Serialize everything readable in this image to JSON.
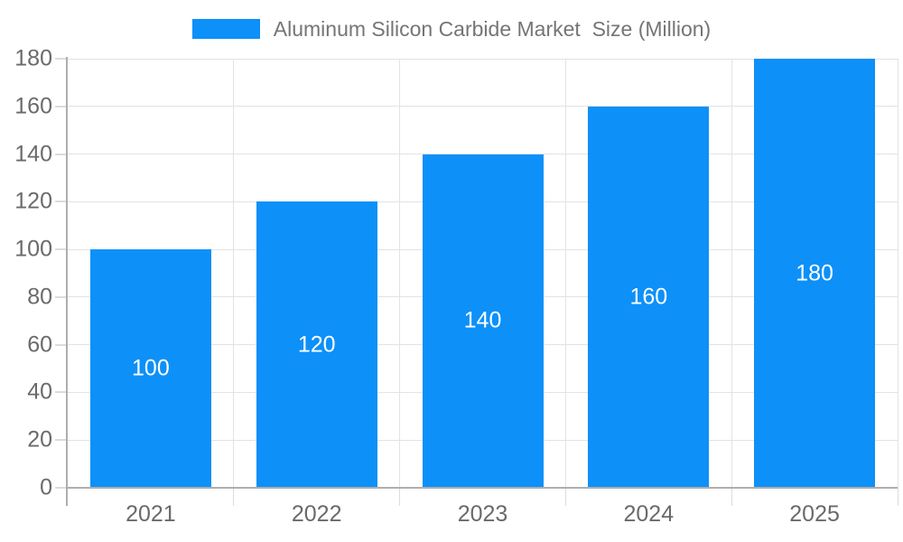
{
  "legend": {
    "label": "Aluminum Silicon Carbide Market  Size (Million)"
  },
  "chart_data": {
    "type": "bar",
    "title": "",
    "xlabel": "",
    "ylabel": "",
    "categories": [
      "2021",
      "2022",
      "2023",
      "2024",
      "2025"
    ],
    "series": [
      {
        "name": "Aluminum Silicon Carbide Market  Size (Million)",
        "values": [
          100,
          120,
          140,
          160,
          180
        ]
      }
    ],
    "bar_value_labels": [
      "100",
      "120",
      "140",
      "160",
      "180"
    ],
    "ylim": [
      0,
      180
    ],
    "ytick_step": 20,
    "yticks": [
      0,
      20,
      40,
      60,
      80,
      100,
      120,
      140,
      160,
      180
    ],
    "grid": true,
    "legend_position": "top-center"
  },
  "colors": {
    "bar": "#0d90f8",
    "grid_line": "#e3e3e3",
    "axis_line": "#aeaeae",
    "tick_mark": "#dcdcdc",
    "tick_label": "#6a6a6a",
    "legend_text": "#757575",
    "bar_label": "#ffffff",
    "background": "#ffffff"
  }
}
